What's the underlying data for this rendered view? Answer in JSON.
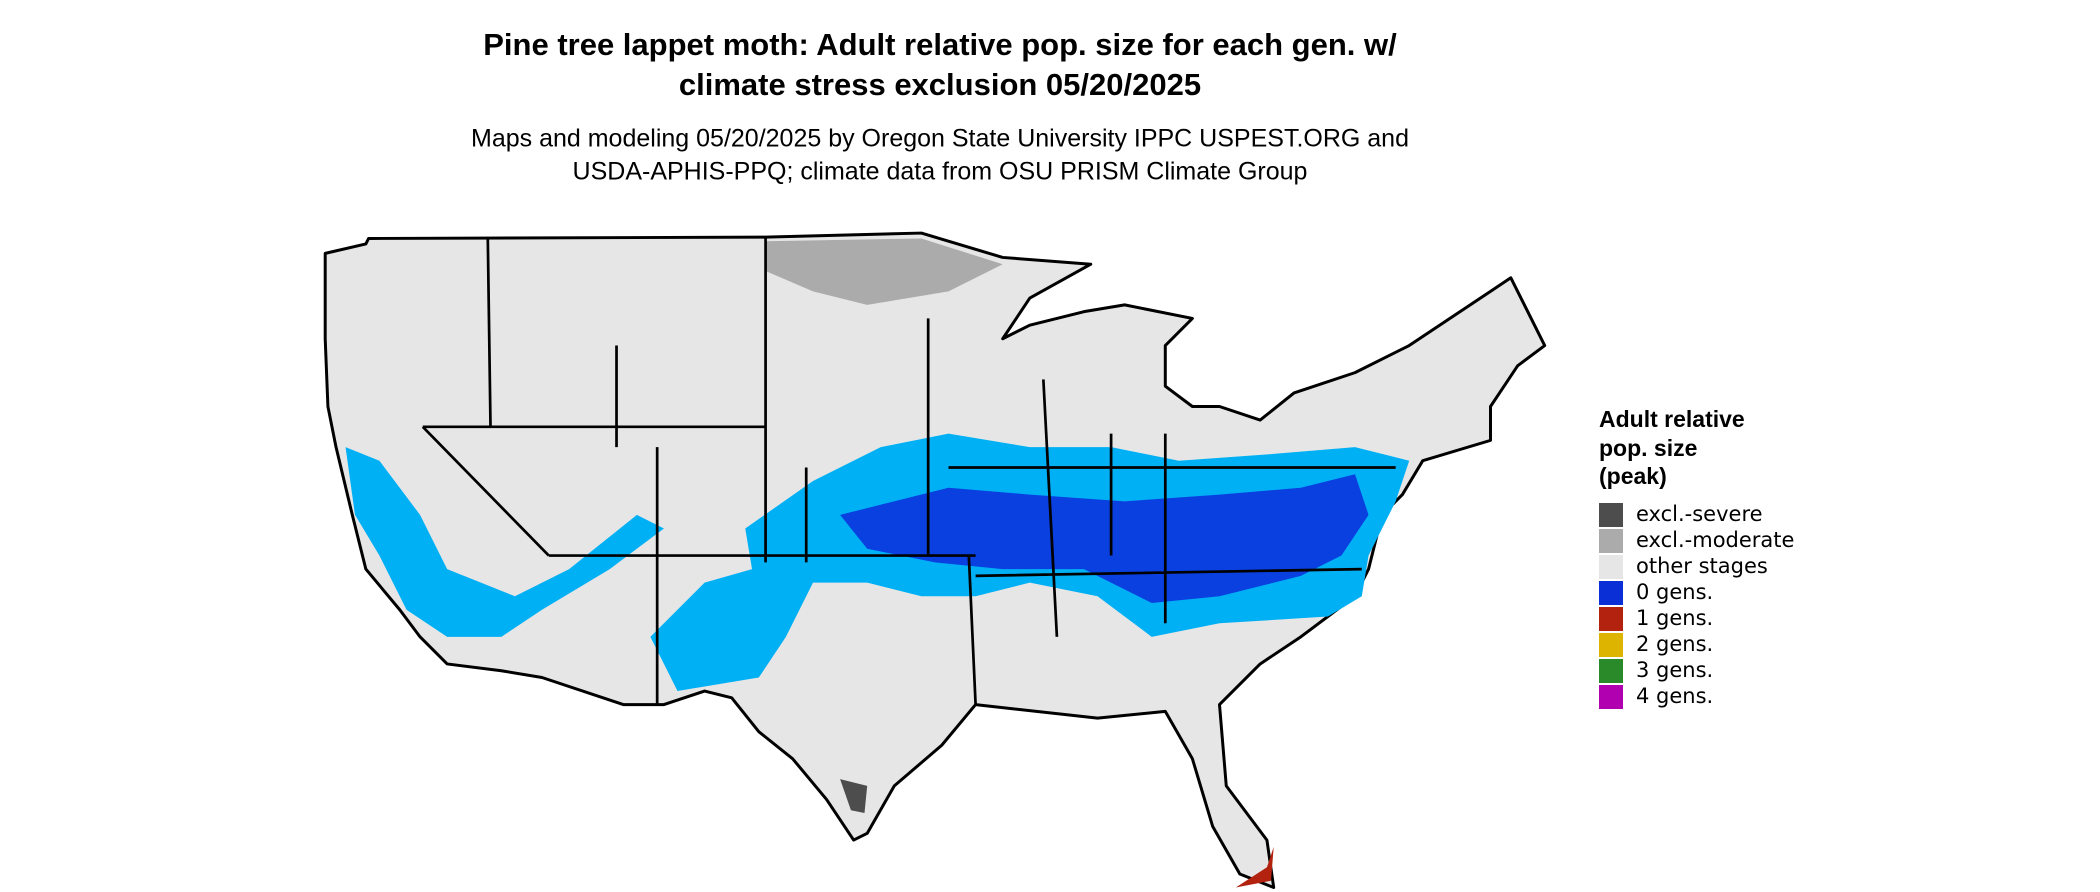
{
  "title": [
    "Pine tree lappet moth: Adult relative pop. size for each gen. w/",
    "climate stress exclusion 05/20/2025"
  ],
  "subtitle": [
    "Maps and modeling 05/20/2025 by Oregon State University IPPC USPEST.ORG and",
    "USDA-APHIS-PPQ; climate data from OSU PRISM Climate Group"
  ],
  "legend": {
    "title": [
      "Adult relative",
      "pop. size",
      "(peak)"
    ],
    "items": [
      {
        "label": "excl.-severe",
        "color": "#4d4d4d"
      },
      {
        "label": "excl.-moderate",
        "color": "#ababab"
      },
      {
        "label": "other stages",
        "color": "#e6e6e6"
      },
      {
        "label": "0 gens.",
        "color": "#0a2fd6"
      },
      {
        "label": "1 gens.",
        "color": "#b2220f"
      },
      {
        "label": "2 gens.",
        "color": "#ddb400"
      },
      {
        "label": "3 gens.",
        "color": "#2a8a2a"
      },
      {
        "label": "4 gens.",
        "color": "#b000b0"
      }
    ]
  }
}
